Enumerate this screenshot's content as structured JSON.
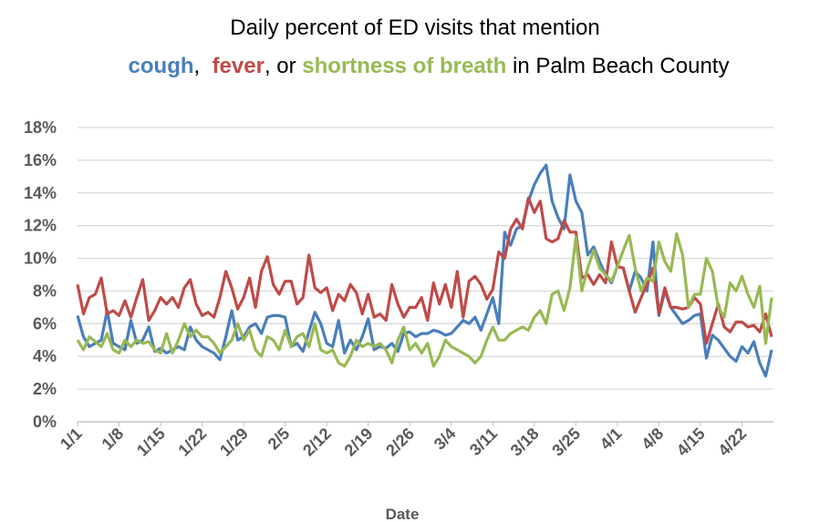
{
  "chart_data": {
    "type": "line",
    "title": "Daily percent of ED visits that mention",
    "title_parts": [
      {
        "text": "cough",
        "color": "#4a7ebb",
        "bold": true
      },
      {
        "text": ",  "
      },
      {
        "text": "fever",
        "color": "#be4b48",
        "bold": true
      },
      {
        "text": ", or "
      },
      {
        "text": "shortness of breath",
        "color": "#98b954",
        "bold": true
      },
      {
        "text": " in Palm Beach County"
      }
    ],
    "x_label": "Date",
    "categories": [
      "1/1",
      null,
      null,
      null,
      null,
      null,
      null,
      "1/8",
      null,
      null,
      null,
      null,
      null,
      null,
      "1/15",
      null,
      null,
      null,
      null,
      null,
      null,
      "1/22",
      null,
      null,
      null,
      null,
      null,
      null,
      "1/29",
      null,
      null,
      null,
      null,
      null,
      null,
      "2/5",
      null,
      null,
      null,
      null,
      null,
      null,
      "2/12",
      null,
      null,
      null,
      null,
      null,
      null,
      "2/19",
      null,
      null,
      null,
      null,
      null,
      null,
      "2/26",
      null,
      null,
      null,
      null,
      null,
      null,
      "3/4",
      null,
      null,
      null,
      null,
      null,
      null,
      "3/11",
      null,
      null,
      null,
      null,
      null,
      null,
      "3/18",
      null,
      null,
      null,
      null,
      null,
      null,
      "3/25",
      null,
      null,
      null,
      null,
      null,
      null,
      "4/1",
      null,
      null,
      null,
      null,
      null,
      null,
      "4/8",
      null,
      null,
      null,
      null,
      null,
      null,
      "4/15",
      null,
      null,
      null,
      null,
      null,
      null,
      "4/22",
      null,
      null,
      null,
      null,
      null
    ],
    "ylim": [
      0,
      18
    ],
    "yticks": [
      {
        "value": 0,
        "label": "0%"
      },
      {
        "value": 2,
        "label": "2%"
      },
      {
        "value": 4,
        "label": "4%"
      },
      {
        "value": 6,
        "label": "6%"
      },
      {
        "value": 8,
        "label": "8%"
      },
      {
        "value": 10,
        "label": "10%"
      },
      {
        "value": 12,
        "label": "12%"
      },
      {
        "value": 14,
        "label": "14%"
      },
      {
        "value": 16,
        "label": "16%"
      },
      {
        "value": 18,
        "label": "18%"
      }
    ],
    "grid": true,
    "series": [
      {
        "color": "#4a7ebb",
        "values": [
          6.5,
          5.2,
          4.6,
          4.8,
          5.0,
          6.8,
          4.8,
          4.6,
          4.4,
          6.2,
          4.8,
          5.0,
          5.8,
          4.3,
          4.5,
          4.2,
          4.4,
          4.6,
          4.4,
          5.8,
          5.0,
          4.6,
          4.4,
          4.2,
          3.8,
          5.2,
          6.8,
          5.0,
          5.2,
          5.8,
          6.0,
          5.4,
          6.4,
          6.5,
          6.5,
          6.4,
          4.6,
          4.8,
          4.3,
          5.5,
          6.7,
          6.0,
          4.8,
          4.6,
          6.2,
          4.2,
          5.0,
          4.4,
          5.2,
          6.3,
          4.4,
          4.6,
          4.5,
          4.8,
          4.3,
          5.4,
          5.5,
          5.2,
          5.4,
          5.4,
          5.6,
          5.5,
          5.3,
          5.4,
          5.8,
          6.2,
          6.0,
          6.4,
          5.6,
          6.6,
          7.6,
          6.0,
          11.6,
          10.8,
          11.8,
          12.0,
          13.5,
          14.5,
          15.2,
          15.7,
          13.5,
          12.5,
          11.8,
          15.1,
          13.5,
          12.8,
          10.2,
          10.7,
          9.8,
          9.0,
          8.5,
          9.5,
          9.4,
          8.0,
          9.2,
          8.8,
          8.0,
          11.0,
          6.5,
          8.0,
          7.0,
          6.5,
          6.0,
          6.2,
          6.5,
          6.6,
          3.9,
          5.3,
          5.0,
          4.5,
          4.0,
          3.7,
          4.6,
          4.2,
          4.9,
          3.6,
          2.8,
          4.4
        ]
      },
      {
        "color": "#be4b48",
        "values": [
          8.4,
          6.6,
          7.6,
          7.8,
          8.8,
          6.6,
          6.8,
          6.5,
          7.4,
          6.4,
          7.6,
          8.7,
          6.2,
          6.8,
          7.6,
          7.2,
          7.6,
          7.0,
          8.2,
          8.7,
          7.2,
          6.5,
          6.7,
          6.4,
          7.6,
          9.2,
          8.2,
          6.9,
          7.6,
          8.8,
          7.0,
          9.2,
          10.1,
          8.4,
          7.8,
          8.6,
          8.6,
          7.2,
          7.6,
          10.2,
          8.2,
          7.9,
          8.2,
          6.8,
          7.8,
          7.4,
          8.4,
          7.9,
          6.6,
          7.8,
          6.4,
          6.6,
          6.2,
          8.4,
          7.2,
          6.4,
          7.0,
          7.0,
          7.6,
          6.2,
          8.5,
          7.2,
          8.4,
          7.0,
          9.2,
          6.4,
          8.6,
          8.9,
          8.4,
          7.5,
          8.1,
          10.4,
          10.0,
          11.8,
          12.4,
          11.8,
          13.7,
          12.8,
          13.5,
          11.2,
          11.0,
          11.2,
          12.3,
          11.6,
          11.6,
          8.8,
          9.0,
          8.4,
          9.0,
          8.5,
          11.0,
          9.5,
          9.4,
          8.0,
          6.7,
          7.6,
          8.4,
          9.4,
          6.6,
          8.2,
          7.0,
          7.0,
          6.9,
          7.0,
          7.6,
          7.2,
          4.8,
          6.0,
          7.2,
          5.8,
          5.5,
          6.1,
          6.1,
          5.8,
          5.9,
          5.5,
          6.6,
          5.2
        ]
      },
      {
        "color": "#98b954",
        "values": [
          5.0,
          4.4,
          5.2,
          4.9,
          4.6,
          5.4,
          4.4,
          4.2,
          5.0,
          4.6,
          5.0,
          4.8,
          4.9,
          4.4,
          4.2,
          5.4,
          4.2,
          5.0,
          6.0,
          5.2,
          5.6,
          5.2,
          5.2,
          4.8,
          4.2,
          4.6,
          5.0,
          6.0,
          5.0,
          5.6,
          4.4,
          4.0,
          5.2,
          5.0,
          4.4,
          5.6,
          4.6,
          5.2,
          5.4,
          4.6,
          6.0,
          4.4,
          4.2,
          4.4,
          3.6,
          3.4,
          4.0,
          5.0,
          4.6,
          4.8,
          4.6,
          4.8,
          4.4,
          3.6,
          5.0,
          5.8,
          4.4,
          4.8,
          4.2,
          4.8,
          3.4,
          4.0,
          5.0,
          4.6,
          4.4,
          4.2,
          4.0,
          3.6,
          4.0,
          5.0,
          5.8,
          5.0,
          5.0,
          5.4,
          5.6,
          5.8,
          5.6,
          6.4,
          6.8,
          6.0,
          7.8,
          8.0,
          6.8,
          8.2,
          11.3,
          8.0,
          9.4,
          10.5,
          9.4,
          9.0,
          8.6,
          9.5,
          10.5,
          11.4,
          9.4,
          8.0,
          8.8,
          8.6,
          11.0,
          9.8,
          9.2,
          11.5,
          10.2,
          7.0,
          7.8,
          7.8,
          10.0,
          9.2,
          7.0,
          6.4,
          8.5,
          8.0,
          8.9,
          7.8,
          7.0,
          8.3,
          4.8,
          7.6
        ]
      }
    ]
  }
}
